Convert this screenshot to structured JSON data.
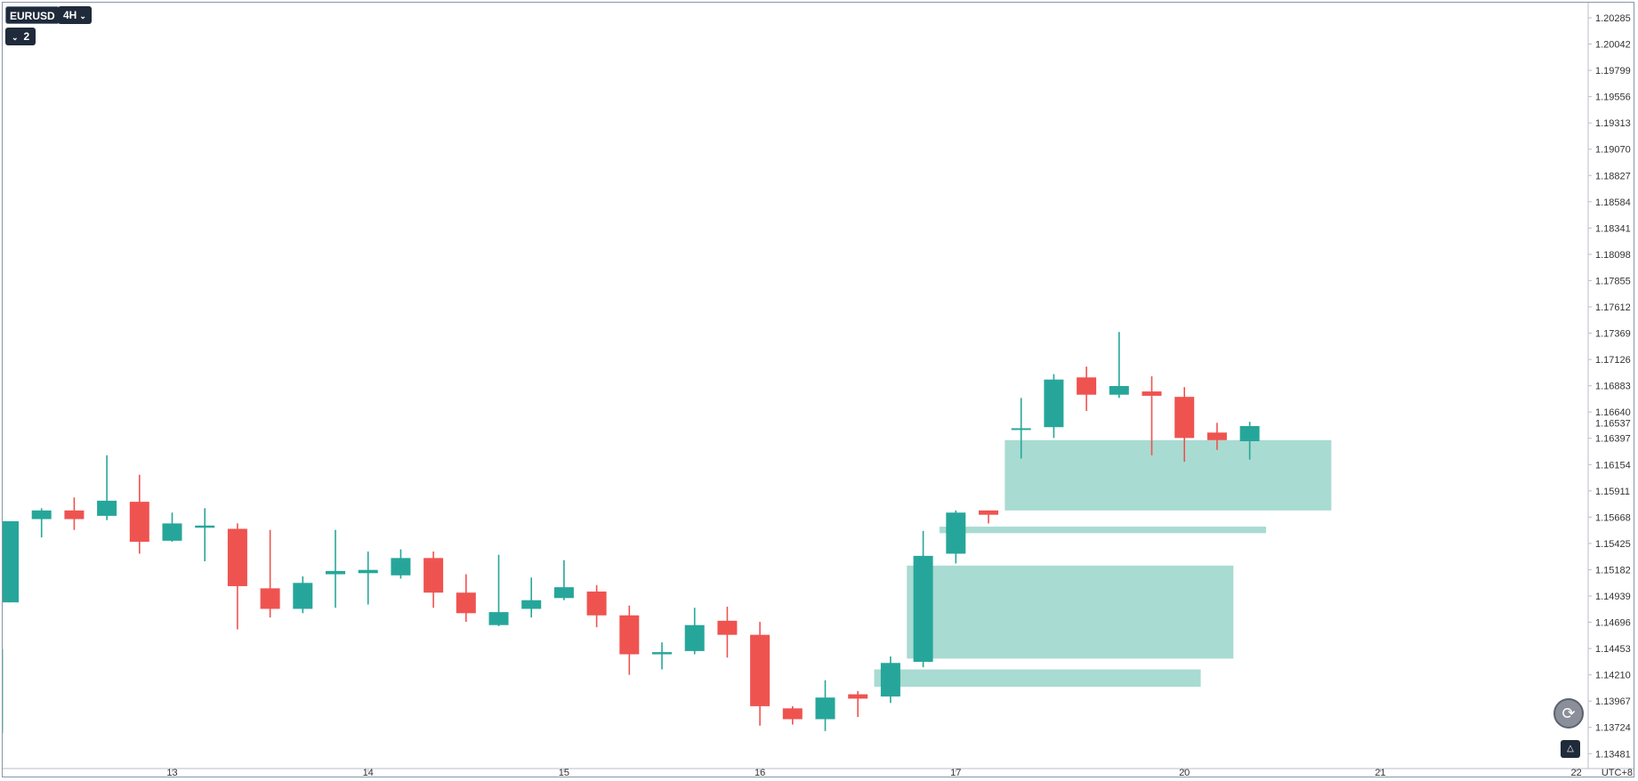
{
  "header": {
    "symbol": "EURUSD",
    "timeframe": "4H",
    "indicator_count": "2"
  },
  "footer": {
    "timezone": "UTC+8"
  },
  "colors": {
    "up": "#26a69a",
    "down": "#ef5350",
    "zone": "#a8dbd2",
    "axis_text": "#333333",
    "background": "#ffffff"
  },
  "icons": {
    "reset": "refresh-arrow-icon",
    "auto_scale": "auto-scale-icon"
  },
  "chart_data": {
    "type": "candlestick",
    "title": "",
    "xlabel": "",
    "ylabel": "",
    "price_label": "1.16537",
    "price_ticks": [
      "1.20285",
      "1.20042",
      "1.19799",
      "1.19556",
      "1.19313",
      "1.19070",
      "1.18827",
      "1.18584",
      "1.18341",
      "1.18098",
      "1.17855",
      "1.17612",
      "1.17369",
      "1.17126",
      "1.16883",
      "1.16640",
      "1.16397",
      "1.16154",
      "1.15911",
      "1.15668",
      "1.15425",
      "1.15182",
      "1.14939",
      "1.14696",
      "1.14453",
      "1.14210",
      "1.13967",
      "1.13724",
      "1.13481"
    ],
    "ylim": [
      1.1336,
      1.204
    ],
    "date_ticks": [
      {
        "label": "13",
        "pos": 5
      },
      {
        "label": "14",
        "pos": 11
      },
      {
        "label": "15",
        "pos": 17
      },
      {
        "label": "16",
        "pos": 23
      },
      {
        "label": "17",
        "pos": 29
      },
      {
        "label": "20",
        "pos": 36
      },
      {
        "label": "21",
        "pos": 42
      },
      {
        "label": "22",
        "pos": 48
      }
    ],
    "candles": [
      {
        "o": 1.1488,
        "h": 1.1563,
        "l": 1.1488,
        "c": 1.1563
      },
      {
        "o": 1.1565,
        "h": 1.1575,
        "l": 1.1548,
        "c": 1.1573
      },
      {
        "o": 1.1573,
        "h": 1.1585,
        "l": 1.1555,
        "c": 1.1565
      },
      {
        "o": 1.1568,
        "h": 1.1624,
        "l": 1.1564,
        "c": 1.1582
      },
      {
        "o": 1.1581,
        "h": 1.1606,
        "l": 1.1533,
        "c": 1.1544
      },
      {
        "o": 1.1545,
        "h": 1.1571,
        "l": 1.1544,
        "c": 1.1561
      },
      {
        "o": 1.1557,
        "h": 1.1575,
        "l": 1.1526,
        "c": 1.1559
      },
      {
        "o": 1.1556,
        "h": 1.1561,
        "l": 1.1463,
        "c": 1.1503
      },
      {
        "o": 1.1501,
        "h": 1.1555,
        "l": 1.1474,
        "c": 1.1482
      },
      {
        "o": 1.1482,
        "h": 1.1512,
        "l": 1.1478,
        "c": 1.1506
      },
      {
        "o": 1.1514,
        "h": 1.1555,
        "l": 1.1483,
        "c": 1.1517
      },
      {
        "o": 1.1515,
        "h": 1.1535,
        "l": 1.1486,
        "c": 1.1518
      },
      {
        "o": 1.1513,
        "h": 1.1537,
        "l": 1.151,
        "c": 1.1529
      },
      {
        "o": 1.1529,
        "h": 1.1535,
        "l": 1.1483,
        "c": 1.1497
      },
      {
        "o": 1.1497,
        "h": 1.1514,
        "l": 1.147,
        "c": 1.1478
      },
      {
        "o": 1.1467,
        "h": 1.1532,
        "l": 1.1466,
        "c": 1.1479
      },
      {
        "o": 1.1482,
        "h": 1.1511,
        "l": 1.1474,
        "c": 1.149
      },
      {
        "o": 1.1492,
        "h": 1.1527,
        "l": 1.149,
        "c": 1.1502
      },
      {
        "o": 1.1498,
        "h": 1.1504,
        "l": 1.1465,
        "c": 1.1476
      },
      {
        "o": 1.1476,
        "h": 1.1485,
        "l": 1.1421,
        "c": 1.144
      },
      {
        "o": 1.144,
        "h": 1.1451,
        "l": 1.1426,
        "c": 1.1442
      },
      {
        "o": 1.1443,
        "h": 1.1483,
        "l": 1.144,
        "c": 1.1467
      },
      {
        "o": 1.1471,
        "h": 1.1484,
        "l": 1.1437,
        "c": 1.1458
      },
      {
        "o": 1.1458,
        "h": 1.147,
        "l": 1.1374,
        "c": 1.1392
      },
      {
        "o": 1.139,
        "h": 1.1392,
        "l": 1.1375,
        "c": 1.138
      },
      {
        "o": 1.138,
        "h": 1.1416,
        "l": 1.1369,
        "c": 1.14
      },
      {
        "o": 1.1403,
        "h": 1.1406,
        "l": 1.1382,
        "c": 1.1399
      },
      {
        "o": 1.1401,
        "h": 1.1438,
        "l": 1.1395,
        "c": 1.1432
      },
      {
        "o": 1.1433,
        "h": 1.1554,
        "l": 1.1428,
        "c": 1.1531
      },
      {
        "o": 1.1533,
        "h": 1.1573,
        "l": 1.1524,
        "c": 1.1571
      },
      {
        "o": 1.1573,
        "h": 1.1573,
        "l": 1.1561,
        "c": 1.1569
      },
      {
        "o": 1.1649,
        "h": 1.1677,
        "l": 1.1621,
        "c": 1.1649
      },
      {
        "o": 1.165,
        "h": 1.1699,
        "l": 1.164,
        "c": 1.1694
      },
      {
        "o": 1.1696,
        "h": 1.1706,
        "l": 1.1665,
        "c": 1.168
      },
      {
        "o": 1.168,
        "h": 1.1738,
        "l": 1.1677,
        "c": 1.1688
      },
      {
        "o": 1.1683,
        "h": 1.1697,
        "l": 1.1624,
        "c": 1.1679
      },
      {
        "o": 1.1678,
        "h": 1.1687,
        "l": 1.1618,
        "c": 1.164
      },
      {
        "o": 1.1645,
        "h": 1.1654,
        "l": 1.1629,
        "c": 1.1638
      },
      {
        "o": 1.1637,
        "h": 1.1655,
        "l": 1.162,
        "c": 1.1651
      }
    ],
    "zones": [
      {
        "from": 30.5,
        "to": 40.5,
        "top": 1.1638,
        "bottom": 1.1573
      },
      {
        "from": 28.5,
        "to": 38.5,
        "top": 1.1558,
        "bottom": 1.1552
      },
      {
        "from": 27.5,
        "to": 37.5,
        "top": 1.1522,
        "bottom": 1.1436
      },
      {
        "from": 26.5,
        "to": 36.5,
        "top": 1.1426,
        "bottom": 1.141
      },
      {
        "from": -0.5,
        "to": -0.3,
        "top": 1.1445,
        "bottom": 1.1367
      }
    ]
  }
}
